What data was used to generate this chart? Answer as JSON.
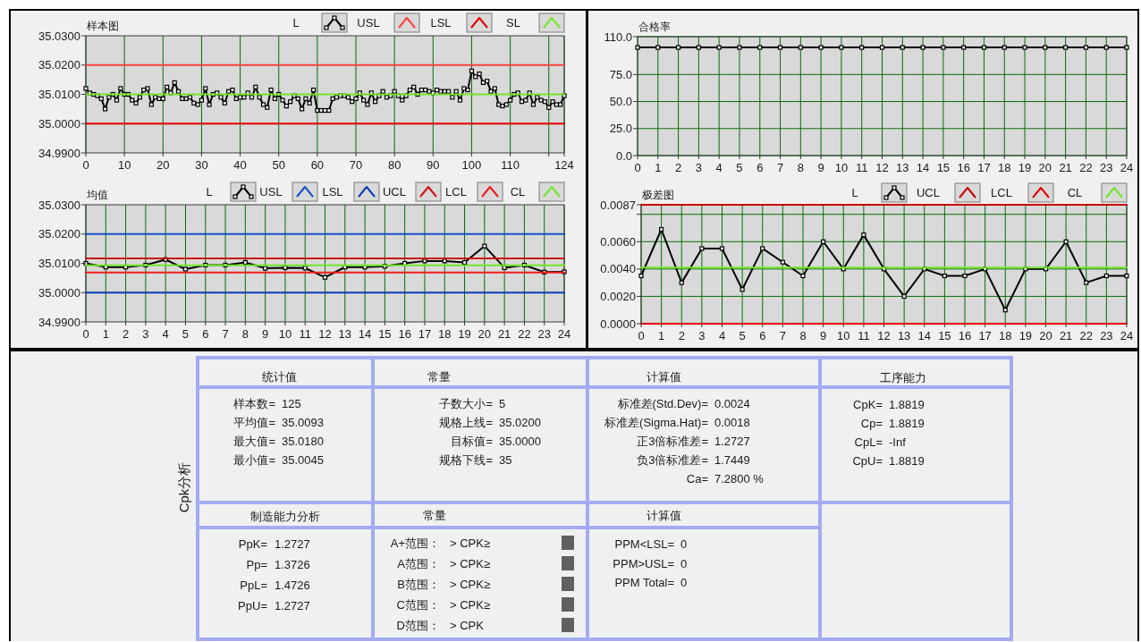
{
  "chart_data": [
    {
      "type": "line",
      "title": "样本图",
      "x": [
        0,
        1,
        2,
        3,
        4,
        5,
        6,
        7,
        8,
        9,
        10,
        11,
        12,
        13,
        14,
        15,
        16,
        17,
        18,
        19,
        20,
        21,
        22,
        23,
        24,
        25,
        26,
        27,
        28,
        29,
        30,
        31,
        32,
        33,
        34,
        35,
        36,
        37,
        38,
        39,
        40,
        41,
        42,
        43,
        44,
        45,
        46,
        47,
        48,
        49,
        50,
        51,
        52,
        53,
        54,
        55,
        56,
        57,
        58,
        59,
        60,
        61,
        62,
        63,
        64,
        65,
        66,
        67,
        68,
        69,
        70,
        71,
        72,
        73,
        74,
        75,
        76,
        77,
        78,
        79,
        80,
        81,
        82,
        83,
        84,
        85,
        86,
        87,
        88,
        89,
        90,
        91,
        92,
        93,
        94,
        95,
        96,
        97,
        98,
        99,
        100,
        101,
        102,
        103,
        104,
        105,
        106,
        107,
        108,
        109,
        110,
        111,
        112,
        113,
        114,
        115,
        116,
        117,
        118,
        119,
        120,
        121,
        122,
        123,
        124
      ],
      "series": [
        {
          "name": "L",
          "color": "#000000",
          "marker": "square",
          "values": [
            35.012,
            35.0105,
            35.01,
            35.0095,
            35.0085,
            35.005,
            35.009,
            35.01,
            35.008,
            35.012,
            35.01,
            35.01,
            35.008,
            35.007,
            35.009,
            35.0115,
            35.012,
            35.0065,
            35.009,
            35.0085,
            35.0085,
            35.0125,
            35.0105,
            35.014,
            35.011,
            35.0085,
            35.0085,
            35.009,
            35.007,
            35.0065,
            35.008,
            35.012,
            35.0065,
            35.01,
            35.0105,
            35.009,
            35.007,
            35.011,
            35.0115,
            35.0085,
            35.009,
            35.009,
            35.0105,
            35.009,
            35.0125,
            35.009,
            35.0065,
            35.0055,
            35.0115,
            35.0085,
            35.01,
            35.008,
            35.006,
            35.0075,
            35.0095,
            35.0085,
            35.005,
            35.0085,
            35.007,
            35.0115,
            35.0045,
            35.0045,
            35.0045,
            35.0045,
            35.0085,
            35.009,
            35.0095,
            35.0095,
            35.009,
            35.0075,
            35.0085,
            35.0105,
            35.008,
            35.0065,
            35.0105,
            35.0075,
            35.0095,
            35.011,
            35.009,
            35.0095,
            35.011,
            35.0095,
            35.008,
            35.0095,
            35.0115,
            35.0125,
            35.01,
            35.0115,
            35.0115,
            35.011,
            35.0105,
            35.0115,
            35.011,
            35.011,
            35.011,
            35.009,
            35.011,
            35.008,
            35.012,
            35.0115,
            35.018,
            35.016,
            35.017,
            35.014,
            35.0145,
            35.011,
            35.012,
            35.0065,
            35.006,
            35.0065,
            35.008,
            35.01,
            35.0105,
            35.0075,
            35.008,
            35.0105,
            35.0065,
            35.009,
            35.008,
            35.0075,
            35.0055,
            35.0075,
            35.0065,
            35.0065,
            35.0095
          ]
        },
        {
          "name": "USL",
          "color": "#ff4040",
          "x": [
            0,
            124
          ],
          "values": [
            35.02,
            35.02
          ]
        },
        {
          "name": "LSL",
          "color": "#e00000",
          "x": [
            0,
            124
          ],
          "values": [
            35,
            35
          ]
        },
        {
          "name": "SL",
          "color": "#72e628",
          "x": [
            0,
            124
          ],
          "values": [
            35.01,
            35.01
          ]
        }
      ],
      "xlim": [
        0,
        124
      ],
      "xticks": [
        0,
        10,
        20,
        30,
        40,
        50,
        60,
        70,
        80,
        90,
        100,
        110,
        {
          "value": 120,
          "label": null
        },
        124
      ],
      "ylim": [
        34.99,
        35.03
      ],
      "yticks": [
        {
          "value": 34.99,
          "label": "34.9900"
        },
        {
          "value": 35,
          "label": "35.0000"
        },
        {
          "value": 35.01,
          "label": "35.0100"
        },
        {
          "value": 35.02,
          "label": "35.0200"
        },
        {
          "value": 35.03,
          "label": "35.0300"
        }
      ],
      "grid": "x",
      "legend": "top right"
    },
    {
      "type": "line",
      "title": "合格率",
      "x": [
        0,
        1,
        2,
        3,
        4,
        5,
        6,
        7,
        8,
        9,
        10,
        11,
        12,
        13,
        14,
        15,
        16,
        17,
        18,
        19,
        20,
        21,
        22,
        23,
        24
      ],
      "series": [
        {
          "color": "#000000",
          "marker": "square",
          "values": [
            100,
            100,
            100,
            100,
            100,
            100,
            100,
            100,
            100,
            100,
            100,
            100,
            100,
            100,
            100,
            100,
            100,
            100,
            100,
            100,
            100,
            100,
            100,
            100,
            100
          ]
        }
      ],
      "xlim": [
        0,
        24
      ],
      "xticks": [
        0,
        1,
        2,
        3,
        4,
        5,
        6,
        7,
        8,
        9,
        10,
        11,
        12,
        13,
        14,
        15,
        16,
        17,
        18,
        19,
        20,
        21,
        22,
        23,
        24
      ],
      "ylim": [
        0,
        110
      ],
      "yticks": [
        {
          "value": 0,
          "label": "0.0"
        },
        {
          "value": 25,
          "label": "25.0"
        },
        {
          "value": 50,
          "label": "50.0"
        },
        {
          "value": 75,
          "label": "75.0"
        },
        {
          "value": 110,
          "label": "110.0"
        }
      ],
      "grid": true
    },
    {
      "type": "line",
      "title": "均值",
      "x": [
        0,
        1,
        2,
        3,
        4,
        5,
        6,
        7,
        8,
        9,
        10,
        11,
        12,
        13,
        14,
        15,
        16,
        17,
        18,
        19,
        20,
        21,
        22,
        23,
        24
      ],
      "series": [
        {
          "name": "L",
          "color": "#000000",
          "marker": "square",
          "values": [
            35.01,
            35.0087,
            35.0087,
            35.0094,
            35.0113,
            35.008,
            35.0094,
            35.0094,
            35.0103,
            35.0083,
            35.0085,
            35.0084,
            35.0052,
            35.0087,
            35.0087,
            35.009,
            35.01,
            35.0108,
            35.0108,
            35.0103,
            35.0159,
            35.0085,
            35.0094,
            35.007,
            35.0071
          ]
        },
        {
          "name": "USL",
          "color": "#1450c8",
          "x": [
            0,
            24
          ],
          "values": [
            35.02,
            35.02
          ]
        },
        {
          "name": "LSL",
          "color": "#0a3cb4",
          "x": [
            0,
            24
          ],
          "values": [
            35,
            35
          ]
        },
        {
          "name": "UCL",
          "color": "#d01010",
          "x": [
            0,
            24
          ],
          "values": [
            35.0117,
            35.0117
          ]
        },
        {
          "name": "LCL",
          "color": "#f01c1c",
          "x": [
            0,
            24
          ],
          "values": [
            35.0069,
            35.0069
          ]
        },
        {
          "name": "CL",
          "color": "#72e628",
          "x": [
            0,
            24
          ],
          "values": [
            35.0093,
            35.0093
          ]
        }
      ],
      "xlim": [
        0,
        24
      ],
      "xticks": [
        0,
        1,
        2,
        3,
        4,
        5,
        6,
        7,
        8,
        9,
        10,
        11,
        12,
        13,
        14,
        15,
        16,
        17,
        18,
        19,
        20,
        21,
        22,
        23,
        24
      ],
      "ylim": [
        34.99,
        35.03
      ],
      "yticks": [
        {
          "value": 34.99,
          "label": "34.9900"
        },
        {
          "value": 35,
          "label": "35.0000"
        },
        {
          "value": 35.01,
          "label": "35.0100"
        },
        {
          "value": 35.02,
          "label": "35.0200"
        },
        {
          "value": 35.03,
          "label": "35.0300"
        }
      ],
      "grid": "x",
      "legend": "top right"
    },
    {
      "type": "line",
      "title": "极差图",
      "x": [
        0,
        1,
        2,
        3,
        4,
        5,
        6,
        7,
        8,
        9,
        10,
        11,
        12,
        13,
        14,
        15,
        16,
        17,
        18,
        19,
        20,
        21,
        22,
        23,
        24
      ],
      "series": [
        {
          "name": "L",
          "color": "#000000",
          "marker": "square",
          "values": [
            0.0035,
            0.0069,
            0.003,
            0.0055,
            0.0055,
            0.0025,
            0.0055,
            0.0045,
            0.0035,
            0.006,
            0.004,
            0.0065,
            0.004,
            0.002,
            0.004,
            0.0035,
            0.0035,
            0.004,
            0.001,
            0.004,
            0.004,
            0.006,
            0.003,
            0.0035,
            0.0035
          ]
        },
        {
          "name": "UCL",
          "color": "#c80000",
          "x": [
            0,
            24
          ],
          "values": [
            0.0087,
            0.0087
          ]
        },
        {
          "name": "LCL",
          "color": "#e00000",
          "x": [
            0,
            24
          ],
          "values": [
            0,
            0
          ]
        },
        {
          "name": "CL",
          "color": "#72e628",
          "x": [
            0,
            24
          ],
          "values": [
            0.0041,
            0.0041
          ]
        }
      ],
      "xlim": [
        0,
        24
      ],
      "xticks": [
        0,
        1,
        2,
        3,
        4,
        5,
        6,
        7,
        8,
        9,
        10,
        11,
        12,
        13,
        14,
        15,
        16,
        17,
        18,
        19,
        20,
        21,
        22,
        23,
        24
      ],
      "ylim": [
        0,
        0.0087
      ],
      "yticks": [
        {
          "value": 0,
          "label": "0.0000"
        },
        {
          "value": 0.002,
          "label": "0.0020"
        },
        {
          "value": 0.004,
          "label": "0.0040"
        },
        {
          "value": 0.006,
          "label": "0.0060"
        },
        {
          "value": 0.008,
          "label": null
        },
        {
          "value": 0.0087,
          "label": "0.0087"
        }
      ],
      "grid": true,
      "legend": "top right"
    },
    {
      "type": "other",
      "title": "Cpk分析",
      "annotations": [
        "统计值",
        "样本数= 125",
        "平均值= 35.0093",
        "最大值= 35.0180",
        "最小值= 35.0045",
        "常量",
        "子数大小= 5",
        "规格上线= 35.0200",
        "目标值= 35.0000",
        "规格下线= 35",
        "计算值",
        "标准差(Std.Dev)= 0.0024",
        "标准差(Sigma.Hat)= 0.0018",
        "正3倍标准差= 1.2727",
        "负3倍标准差= 1.7449",
        "Ca= 7.2800 %",
        "工序能力",
        "CpK= 1.8819",
        "Cp= 1.8819",
        "CpL= -Inf",
        "CpU= 1.8819",
        "制造能力分析",
        "PpK= 1.2727",
        "Pp= 1.3726",
        "PpL= 1.4726",
        "PpU= 1.2727",
        "常量",
        "A+范围： > CPK≥",
        "A范围： > CPK≥",
        "B范围： > CPK≥",
        "C范围： > CPK≥",
        "D范围： > CPK",
        "计算值",
        "PPM<LSL= 0",
        "PPM>USL= 0",
        "PPM Total= 0"
      ]
    }
  ]
}
